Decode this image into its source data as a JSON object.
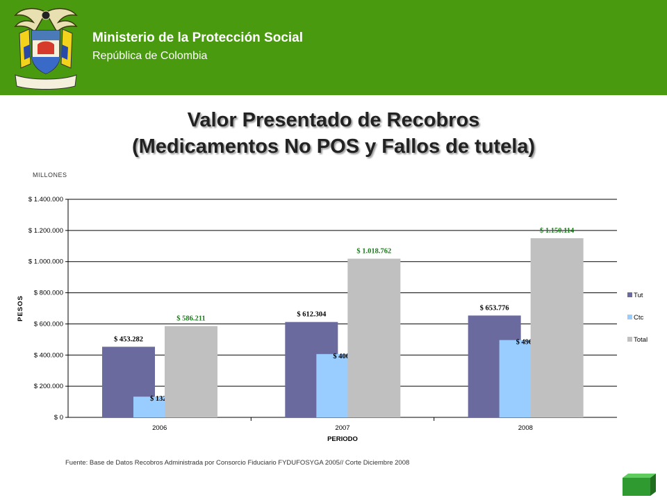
{
  "header": {
    "org_name": "Ministerio de la Protección Social",
    "org_country": "República de Colombia",
    "crest_motto": "Libertad y Orden",
    "background_color": "#4a9a10"
  },
  "title": {
    "line1": "Valor Presentado de Recobros",
    "line2": "(Medicamentos No POS y Fallos de tutela)"
  },
  "units_label": "MILLONES",
  "source_note": "Fuente: Base de Datos Recobros Administrada por Consorcio Fiduciario FYDUFOSYGA 2005// Corte Diciembre 2008",
  "nav": {
    "next_icon": "green-3d-square-icon"
  },
  "chart_data": {
    "type": "bar",
    "categories": [
      "2006",
      "2007",
      "2008"
    ],
    "series": [
      {
        "name": "Tut",
        "values": [
          453282,
          612304,
          653776
        ],
        "labels": [
          "$ 453.282",
          "$ 612.304",
          "$ 653.776"
        ],
        "color": "#6a6a9e"
      },
      {
        "name": "Ctc",
        "values": [
          132929,
          406458,
          496338
        ],
        "labels": [
          "$ 132.929",
          "$ 406.458",
          "$ 496.338"
        ],
        "color": "#99ccff"
      },
      {
        "name": "Total",
        "values": [
          586211,
          1018762,
          1150114
        ],
        "labels": [
          "$ 586.211",
          "$ 1.018.762",
          "$ 1.150.114"
        ],
        "color": "#c0c0c0",
        "label_color": "#1a7a1a"
      }
    ],
    "xlabel": "PERIODO",
    "ylabel": "PESOS",
    "ylim": [
      0,
      1400000
    ],
    "yticks": [
      0,
      200000,
      400000,
      600000,
      800000,
      1000000,
      1200000,
      1400000
    ],
    "ytick_labels": [
      "$ 0",
      "$ 200.000",
      "$ 400.000",
      "$ 600.000",
      "$ 800.000",
      "$ 1.000.000",
      "$ 1.200.000",
      "$ 1.400.000"
    ],
    "grid": true,
    "legend": "right"
  }
}
